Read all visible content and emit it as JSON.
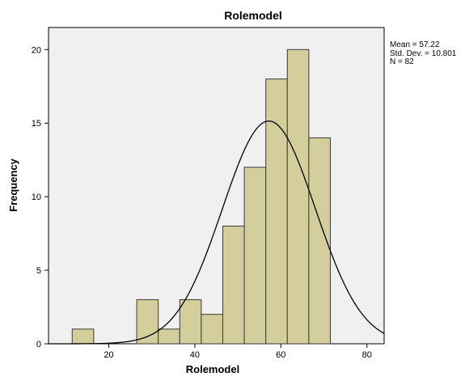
{
  "chart_data": {
    "type": "bar",
    "title": "Rolemodel",
    "xlabel": "Rolemodel",
    "ylabel": "Frequency",
    "xlim": [
      6,
      84
    ],
    "ylim": [
      0,
      21.5
    ],
    "x_ticks": [
      20,
      40,
      60,
      80
    ],
    "y_ticks": [
      0,
      5,
      10,
      15,
      20
    ],
    "bin_width": 5,
    "bins": [
      {
        "start": 11.5,
        "end": 16.5,
        "count": 1
      },
      {
        "start": 26.5,
        "end": 31.5,
        "count": 3
      },
      {
        "start": 31.5,
        "end": 36.5,
        "count": 1
      },
      {
        "start": 36.5,
        "end": 41.5,
        "count": 3
      },
      {
        "start": 41.5,
        "end": 46.5,
        "count": 2
      },
      {
        "start": 46.5,
        "end": 51.5,
        "count": 8
      },
      {
        "start": 51.5,
        "end": 56.5,
        "count": 12
      },
      {
        "start": 56.5,
        "end": 61.5,
        "count": 18
      },
      {
        "start": 61.5,
        "end": 66.5,
        "count": 20
      },
      {
        "start": 66.5,
        "end": 71.5,
        "count": 14
      }
    ],
    "normal_curve": {
      "mean": 57.22,
      "sd": 10.801,
      "n": 82
    },
    "stats_text": {
      "mean": "Mean = 57.22",
      "sd": "Std. Dev. = 10.801",
      "n": "N = 82"
    },
    "colors": {
      "plot_bg": "#f0f0f0",
      "bar_fill": "#d3ce9b",
      "bar_stroke": "#3a3a3a",
      "curve": "#000000"
    },
    "grid": false,
    "legend": "none"
  }
}
